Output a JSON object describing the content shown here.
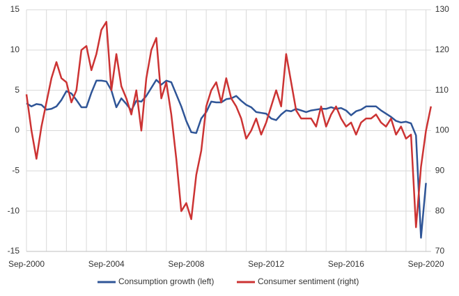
{
  "chart_data": {
    "type": "line",
    "categories": [
      "Sep-2000",
      null,
      null,
      null,
      null,
      null,
      null,
      null,
      null,
      null,
      null,
      null,
      null,
      null,
      null,
      null,
      "Sep-2004",
      null,
      null,
      null,
      null,
      null,
      null,
      null,
      null,
      null,
      null,
      null,
      null,
      null,
      null,
      null,
      "Sep-2008",
      null,
      null,
      null,
      null,
      null,
      null,
      null,
      null,
      null,
      null,
      null,
      null,
      null,
      null,
      null,
      "Sep-2012",
      null,
      null,
      null,
      null,
      null,
      null,
      null,
      null,
      null,
      null,
      null,
      null,
      null,
      null,
      null,
      "Sep-2016",
      null,
      null,
      null,
      null,
      null,
      null,
      null,
      null,
      null,
      null,
      null,
      null,
      null,
      null,
      null,
      "Sep-2020",
      null
    ],
    "series": [
      {
        "name": "Consumption growth (left)",
        "color": "#2f5597",
        "axis": "y",
        "values": [
          3.4,
          3.0,
          3.3,
          3.2,
          2.6,
          2.7,
          3.0,
          3.8,
          4.9,
          4.6,
          3.8,
          2.9,
          2.9,
          4.7,
          6.2,
          6.2,
          6.1,
          5.0,
          2.9,
          4.0,
          3.3,
          2.5,
          3.7,
          3.6,
          4.3,
          5.3,
          6.3,
          5.7,
          6.2,
          6.0,
          4.5,
          3.0,
          1.2,
          -0.2,
          -0.3,
          1.5,
          2.3,
          3.6,
          3.5,
          3.5,
          3.9,
          4.0,
          4.3,
          3.7,
          3.2,
          2.9,
          2.3,
          2.2,
          2.1,
          1.5,
          1.3,
          2.0,
          2.5,
          2.4,
          2.7,
          2.5,
          2.3,
          2.5,
          2.6,
          2.7,
          2.7,
          2.9,
          2.7,
          2.8,
          2.5,
          1.9,
          2.4,
          2.6,
          3.0,
          3.0,
          3.0,
          2.5,
          2.1,
          1.7,
          1.2,
          1.0,
          1.1,
          0.9,
          -0.6,
          -13.3,
          -6.5,
          null
        ]
      },
      {
        "name": "Consumer sentiment (right)",
        "color": "#cc3333",
        "axis": "y2",
        "values": [
          109,
          100,
          93,
          101,
          107,
          113,
          117,
          113,
          112,
          107,
          110,
          120,
          121,
          115,
          119,
          125,
          127,
          110,
          119,
          111,
          108,
          104,
          110,
          100,
          113,
          120,
          123,
          108,
          112,
          104,
          93,
          80,
          82,
          78,
          89,
          95,
          106,
          110,
          112,
          107,
          113,
          108,
          106,
          103,
          98,
          100,
          103,
          99,
          102,
          106,
          110,
          106,
          119,
          112,
          105,
          103,
          103,
          103,
          101,
          106,
          101,
          104,
          106,
          103,
          101,
          102,
          99,
          102,
          103,
          103,
          104,
          102,
          101,
          103,
          99,
          101,
          98,
          99,
          76,
          91,
          100,
          106
        ]
      }
    ],
    "ylim": [
      -15,
      15
    ],
    "yticks": [
      -15,
      -10,
      -5,
      0,
      5,
      10,
      15
    ],
    "y2lim": [
      70,
      130
    ],
    "y2ticks": [
      70,
      80,
      90,
      100,
      110,
      120,
      130
    ],
    "grid": true,
    "legend": "bottom"
  }
}
